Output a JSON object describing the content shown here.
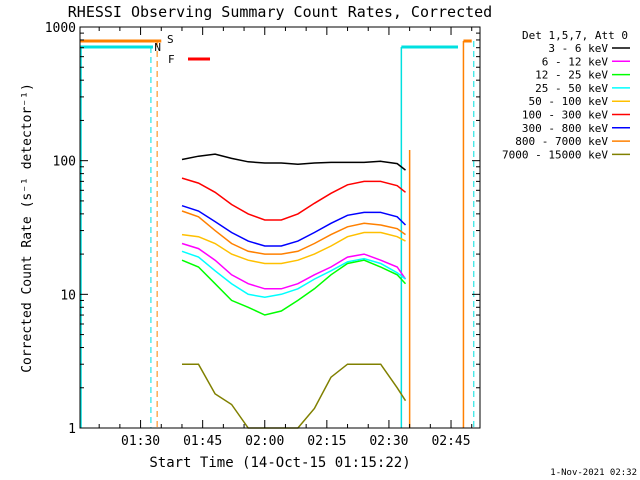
{
  "chart_data": {
    "type": "line",
    "title": "RHESSI Observing Summary Count Rates, Corrected",
    "xlabel": "Start Time (14-Oct-15 01:15:22)",
    "ylabel": "Corrected Count Rate (s⁻¹ detector⁻¹)",
    "y_scale": "log",
    "ylim": [
      1,
      1000
    ],
    "xlim": [
      "01:15:22",
      "02:52:00"
    ],
    "x_ticks": [
      "01:30",
      "01:45",
      "02:00",
      "02:15",
      "02:30",
      "02:45"
    ],
    "y_ticks": [
      "1",
      "10",
      "100",
      "1000"
    ],
    "legend_title": "Det 1,5,7, Att 0",
    "legend_position": "right",
    "timestamp": "1-Nov-2021 02:32",
    "flags": [
      {
        "label": "S",
        "color": "#ff8000"
      },
      {
        "label": "N",
        "color": "#00e0e0"
      },
      {
        "label": "F",
        "color": "#ff0000"
      }
    ],
    "x": [
      "01:40",
      "01:44",
      "01:48",
      "01:52",
      "01:56",
      "02:00",
      "02:04",
      "02:08",
      "02:12",
      "02:16",
      "02:20",
      "02:24",
      "02:28",
      "02:32",
      "02:34"
    ],
    "series": [
      {
        "name": "3 - 6 keV",
        "color": "#000000",
        "values": [
          102,
          108,
          112,
          104,
          98,
          96,
          96,
          94,
          96,
          97,
          97,
          97,
          99,
          95,
          85
        ]
      },
      {
        "name": "6 - 12 keV",
        "color": "#ff00ff",
        "values": [
          24,
          22,
          18,
          14,
          12,
          11,
          11,
          12,
          14,
          16,
          19,
          20,
          18,
          16,
          13
        ]
      },
      {
        "name": "12 - 25 keV",
        "color": "#00ff00",
        "values": [
          18,
          16,
          12,
          9,
          8,
          7,
          7.5,
          9,
          11,
          14,
          17,
          18,
          16,
          14,
          12
        ]
      },
      {
        "name": "25 - 50 keV",
        "color": "#00ffff",
        "values": [
          21,
          19,
          15,
          12,
          10,
          9.5,
          10,
          11,
          13,
          15,
          17.5,
          18.5,
          17,
          14.5,
          13
        ]
      },
      {
        "name": "50 - 100 keV",
        "color": "#ffc000",
        "values": [
          28,
          27,
          24,
          20,
          18,
          17,
          17,
          18,
          20,
          23,
          27,
          29,
          29,
          27,
          25
        ]
      },
      {
        "name": "100 - 300 keV",
        "color": "#ff0000",
        "values": [
          74,
          68,
          58,
          47,
          40,
          36,
          36,
          40,
          48,
          57,
          66,
          70,
          70,
          65,
          58
        ]
      },
      {
        "name": "300 - 800 keV",
        "color": "#0000ff",
        "values": [
          46,
          42,
          35,
          29,
          25,
          23,
          23,
          25,
          29,
          34,
          39,
          41,
          41,
          38,
          33
        ]
      },
      {
        "name": "800 - 7000 keV",
        "color": "#ff8000",
        "values": [
          42,
          38,
          30,
          24,
          21,
          20,
          20,
          21,
          24,
          28,
          32,
          34,
          33,
          31,
          28
        ]
      },
      {
        "name": "7000 - 15000 keV",
        "color": "#808000",
        "values": [
          3,
          3,
          1.8,
          1.5,
          1,
          1,
          1,
          1,
          1.4,
          2.4,
          3,
          3,
          3,
          2,
          1.6
        ]
      }
    ]
  }
}
